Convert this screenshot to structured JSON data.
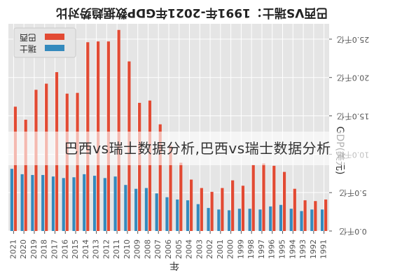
{
  "chart_data": {
    "type": "bar",
    "title": "巴西VS瑞士：1991年-2021年GDP数据趋势对比",
    "xlabel": "年",
    "ylabel": "GDP(美元)",
    "ylim": [
      0,
      27000
    ],
    "ytick_values": [
      0,
      5000,
      10000,
      15000,
      20000,
      25000
    ],
    "yticks": [
      "0.0千亿",
      "5.0千亿",
      "10.0千亿",
      "15.0千亿",
      "20.0千亿",
      "25.0千亿"
    ],
    "grid": true,
    "legend_position": "top-left",
    "categories": [
      "2021",
      "2020",
      "2019",
      "2018",
      "2017",
      "2016",
      "2015",
      "2014",
      "2013",
      "2012",
      "2011",
      "2010",
      "2009",
      "2008",
      "2007",
      "2006",
      "2005",
      "2004",
      "2003",
      "2002",
      "2001",
      "2000",
      "1999",
      "1998",
      "1997",
      "1996",
      "1995",
      "1994",
      "1993",
      "1992",
      "1991"
    ],
    "series": [
      {
        "name": "巴西",
        "color": "#E24A33",
        "values": [
          16200,
          14500,
          18400,
          19200,
          20700,
          17900,
          18000,
          24600,
          24700,
          24700,
          26200,
          22100,
          16700,
          17000,
          13900,
          11100,
          8900,
          6700,
          5600,
          5100,
          5600,
          6600,
          5900,
          8600,
          8800,
          8500,
          7700,
          5500,
          4000,
          3900,
          4100
        ]
      },
      {
        "name": "瑞士",
        "color": "#348ABD",
        "values": [
          8100,
          7400,
          7300,
          7300,
          7100,
          6900,
          7000,
          7400,
          7200,
          6900,
          7100,
          6000,
          5500,
          5600,
          4900,
          4400,
          4100,
          4000,
          3500,
          3000,
          2800,
          2700,
          2900,
          2900,
          2800,
          3200,
          3400,
          2900,
          2600,
          2800,
          2800
        ]
      }
    ]
  },
  "watermark": "巴西vs瑞士数据分析,巴西vs瑞士数据分析"
}
